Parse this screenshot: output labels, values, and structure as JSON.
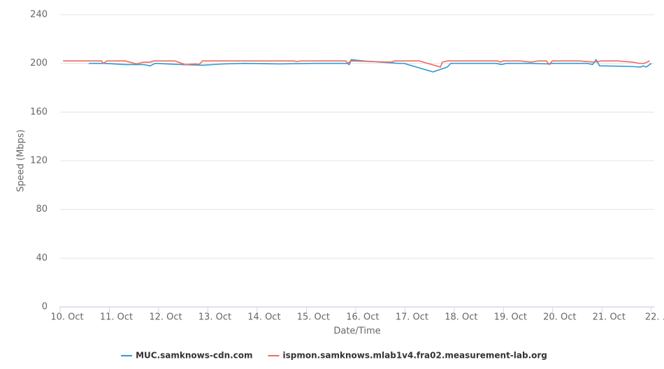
{
  "chart_data": {
    "type": "line",
    "y_label": "Speed (Mbps)",
    "x_label": "Date/Time",
    "xlim": [
      10,
      22.06
    ],
    "xticks": [
      {
        "value": 10,
        "label": "10. Oct"
      },
      {
        "value": 11,
        "label": "11. Oct"
      },
      {
        "value": 12,
        "label": "12. Oct"
      },
      {
        "value": 13,
        "label": "13. Oct"
      },
      {
        "value": 14,
        "label": "14. Oct"
      },
      {
        "value": 15,
        "label": "15. Oct"
      },
      {
        "value": 16,
        "label": "16. Oct"
      },
      {
        "value": 17,
        "label": "17. Oct"
      },
      {
        "value": 18,
        "label": "18. Oct"
      },
      {
        "value": 19,
        "label": "19. Oct"
      },
      {
        "value": 20,
        "label": "20. Oct"
      },
      {
        "value": 21,
        "label": "21. Oct"
      },
      {
        "value": 22,
        "label": "22. …"
      }
    ],
    "ylim": [
      0,
      240
    ],
    "yticks": [
      0,
      40,
      80,
      120,
      160,
      200,
      240
    ],
    "grid": true,
    "legend": "bottom",
    "series": [
      {
        "name": "MUC.samknows-cdn.com",
        "color": "#2f9bd4",
        "x": [
          10.58,
          10.91,
          11.33,
          11.69,
          11.83,
          11.93,
          12.47,
          12.89,
          13.32,
          13.74,
          14.45,
          15.16,
          15.83,
          15.87,
          15.91,
          16.16,
          16.87,
          16.98,
          17.57,
          17.86,
          17.93,
          18.85,
          18.96,
          19.06,
          19.56,
          19.91,
          19.99,
          20.7,
          20.81,
          20.88,
          20.95,
          21.55,
          21.79,
          21.83,
          21.9,
          22.0
        ],
        "values": [
          200,
          200,
          199,
          199,
          198,
          200,
          199,
          198.5,
          199.5,
          200,
          199.5,
          200,
          200,
          199,
          203,
          202,
          200,
          200,
          193,
          197,
          200,
          200,
          199,
          200,
          200,
          199.5,
          200,
          200,
          199,
          203,
          198,
          197.5,
          197,
          198,
          197,
          200
        ]
      },
      {
        "name": "ispmon.samknows.mlab1v4.fra02.measurement-lab.org",
        "color": "#ee6b60",
        "x": [
          10.06,
          10.84,
          10.88,
          10.95,
          11.33,
          11.55,
          11.69,
          11.83,
          11.9,
          12.33,
          12.54,
          12.75,
          12.82,
          12.89,
          13.74,
          14.74,
          14.81,
          14.88,
          15.8,
          15.84,
          15.9,
          16.72,
          16.79,
          17.29,
          17.72,
          17.76,
          17.86,
          18.88,
          18.94,
          18.99,
          19.35,
          19.56,
          19.7,
          19.87,
          19.93,
          19.99,
          20.55,
          20.84,
          20.98,
          21.33,
          21.62,
          21.76,
          21.86,
          21.91,
          21.97
        ],
        "values": [
          202,
          202,
          200,
          202,
          202,
          199.5,
          201,
          201,
          202,
          202,
          199,
          199.5,
          199,
          202,
          202,
          202,
          201.5,
          202,
          202,
          200,
          202,
          201,
          202,
          202,
          197,
          201,
          202,
          202,
          201,
          202,
          202,
          201,
          202,
          202,
          199,
          202,
          202,
          201,
          202,
          202,
          201,
          200,
          200,
          201,
          202
        ]
      }
    ]
  }
}
